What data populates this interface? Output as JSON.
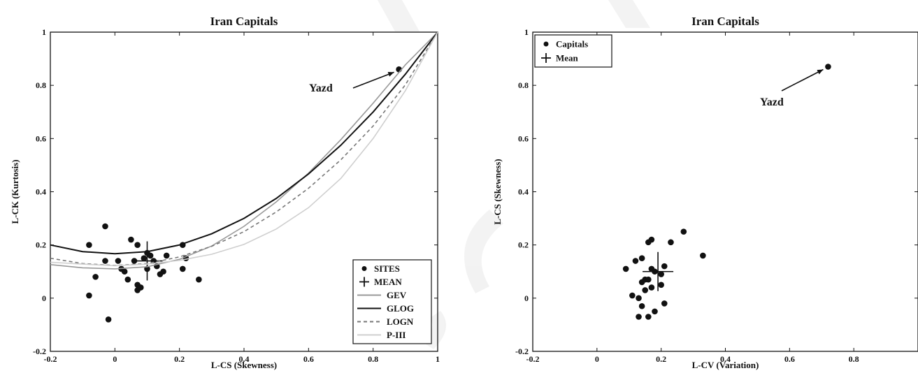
{
  "chart_data": [
    {
      "type": "scatter",
      "title": "Iran Capitals",
      "xlabel": "L-CS (Skewness)",
      "ylabel": "L-CK (Kurtosis)",
      "xlim": [
        -0.2,
        1
      ],
      "ylim": [
        -0.2,
        1
      ],
      "xticks": [
        "-0.2",
        "0",
        "0.2",
        "0.4",
        "0.6",
        "0.8",
        "1"
      ],
      "yticks": [
        "-0.2",
        "0",
        "0.2",
        "0.4",
        "0.6",
        "0.8",
        "1"
      ],
      "grid": false,
      "legend_position": "bottom-right",
      "annotation": {
        "text": "Yazd",
        "target": [
          0.88,
          0.86
        ]
      },
      "series": [
        {
          "name": "SITES",
          "kind": "points",
          "color": "#111111",
          "points": [
            [
              -0.08,
              0.2
            ],
            [
              -0.03,
              0.27
            ],
            [
              -0.03,
              0.14
            ],
            [
              -0.06,
              0.08
            ],
            [
              -0.08,
              0.01
            ],
            [
              0.01,
              0.14
            ],
            [
              0.02,
              0.11
            ],
            [
              0.03,
              0.1
            ],
            [
              0.04,
              0.07
            ],
            [
              0.05,
              0.22
            ],
            [
              0.06,
              0.14
            ],
            [
              0.07,
              0.2
            ],
            [
              0.07,
              0.05
            ],
            [
              0.07,
              0.03
            ],
            [
              0.08,
              0.04
            ],
            [
              0.09,
              0.15
            ],
            [
              0.1,
              0.17
            ],
            [
              0.11,
              0.16
            ],
            [
              0.12,
              0.14
            ],
            [
              0.13,
              0.12
            ],
            [
              0.14,
              0.09
            ],
            [
              0.15,
              0.1
            ],
            [
              0.16,
              0.16
            ],
            [
              0.1,
              0.11
            ],
            [
              -0.02,
              -0.08
            ],
            [
              0.21,
              0.2
            ],
            [
              0.22,
              0.15
            ],
            [
              0.21,
              0.11
            ],
            [
              0.26,
              0.07
            ],
            [
              0.88,
              0.86
            ]
          ]
        },
        {
          "name": "MEAN",
          "kind": "cross",
          "color": "#111111",
          "points": [
            [
              0.1,
              0.14
            ]
          ]
        },
        {
          "name": "GEV",
          "kind": "line",
          "color": "#999999",
          "dash": "",
          "x": [
            -0.2,
            -0.1,
            0,
            0.1,
            0.2,
            0.3,
            0.4,
            0.5,
            0.6,
            0.7,
            0.8,
            0.9,
            1.0
          ],
          "y": [
            0.126,
            0.114,
            0.11,
            0.118,
            0.146,
            0.196,
            0.27,
            0.362,
            0.47,
            0.596,
            0.733,
            0.877,
            1.0
          ]
        },
        {
          "name": "GLOG",
          "kind": "line",
          "color": "#111111",
          "dash": "",
          "x": [
            -0.2,
            -0.1,
            0,
            0.1,
            0.2,
            0.3,
            0.4,
            0.5,
            0.6,
            0.7,
            0.8,
            0.9,
            1.0
          ],
          "y": [
            0.2,
            0.175,
            0.167,
            0.175,
            0.2,
            0.242,
            0.3,
            0.375,
            0.467,
            0.575,
            0.7,
            0.842,
            1.0
          ]
        },
        {
          "name": "LOGN",
          "kind": "line",
          "color": "#777777",
          "dash": "5,4",
          "x": [
            -0.2,
            -0.1,
            0,
            0.1,
            0.2,
            0.3,
            0.4,
            0.5,
            0.6,
            0.7,
            0.8,
            0.9,
            1.0
          ],
          "y": [
            0.15,
            0.13,
            0.123,
            0.13,
            0.155,
            0.195,
            0.25,
            0.324,
            0.413,
            0.52,
            0.647,
            0.802,
            1.0
          ]
        },
        {
          "name": "P-III",
          "kind": "line",
          "color": "#cfcfcf",
          "dash": "",
          "x": [
            -0.2,
            -0.1,
            0,
            0.1,
            0.2,
            0.3,
            0.4,
            0.5,
            0.6,
            0.7,
            0.8,
            0.9,
            1.0
          ],
          "y": [
            0.135,
            0.128,
            0.122,
            0.128,
            0.142,
            0.165,
            0.202,
            0.26,
            0.34,
            0.45,
            0.6,
            0.78,
            1.0
          ]
        }
      ]
    },
    {
      "type": "scatter",
      "title": "Iran Capitals",
      "xlabel": "L-CV (Variation)",
      "ylabel": "L-CS (Skewness)",
      "xlim": [
        -0.2,
        1
      ],
      "ylim": [
        -0.2,
        1
      ],
      "xticks": [
        "-0.2",
        "0",
        "0.2",
        "0.4",
        "0.6",
        "0.8"
      ],
      "yticks": [
        "-0.2",
        "0",
        "0.2",
        "0.4",
        "0.6",
        "0.8",
        "1"
      ],
      "grid": false,
      "legend_position": "top-left",
      "annotation": {
        "text": "Yazd",
        "target": [
          0.72,
          0.87
        ]
      },
      "series": [
        {
          "name": "Capitals",
          "kind": "points",
          "color": "#111111",
          "points": [
            [
              0.09,
              0.11
            ],
            [
              0.12,
              0.14
            ],
            [
              0.14,
              0.15
            ],
            [
              0.16,
              0.21
            ],
            [
              0.17,
              0.22
            ],
            [
              0.23,
              0.21
            ],
            [
              0.27,
              0.25
            ],
            [
              0.33,
              0.16
            ],
            [
              0.11,
              0.01
            ],
            [
              0.13,
              0.0
            ],
            [
              0.14,
              0.06
            ],
            [
              0.15,
              0.03
            ],
            [
              0.15,
              0.07
            ],
            [
              0.16,
              0.07
            ],
            [
              0.17,
              0.11
            ],
            [
              0.18,
              0.1
            ],
            [
              0.2,
              0.09
            ],
            [
              0.21,
              0.12
            ],
            [
              0.2,
              0.05
            ],
            [
              0.21,
              -0.02
            ],
            [
              0.14,
              -0.03
            ],
            [
              0.13,
              -0.07
            ],
            [
              0.16,
              -0.07
            ],
            [
              0.18,
              -0.05
            ],
            [
              0.17,
              0.04
            ],
            [
              0.72,
              0.87
            ]
          ]
        },
        {
          "name": "Mean",
          "kind": "cross",
          "color": "#111111",
          "points": [
            [
              0.19,
              0.1
            ]
          ]
        }
      ]
    }
  ]
}
